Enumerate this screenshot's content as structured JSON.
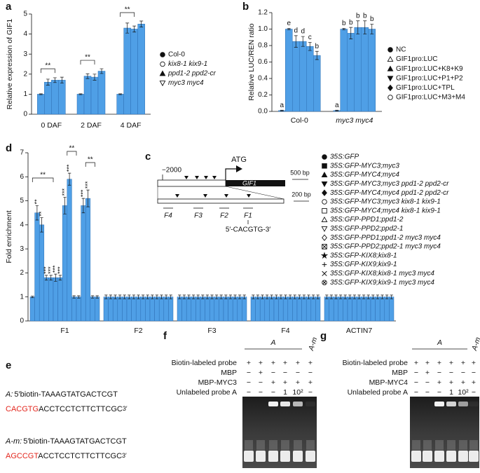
{
  "chart_data": [
    {
      "type": "bar",
      "panel_label": "a",
      "ylabel": "Relative expression of GIF1",
      "categories": [
        "0 DAF",
        "2 DAF",
        "4 DAF"
      ],
      "series": [
        {
          "name": "Col-0",
          "color": "#4f9fe6",
          "marker": "circle",
          "values": [
            1,
            1,
            1
          ],
          "errors": [
            0.02,
            0.02,
            0.02
          ]
        },
        {
          "name": "kix8-1 kix9-1",
          "color": "#4f9fe6",
          "marker": "circle-open",
          "values": [
            1.6,
            1.9,
            4.3
          ],
          "errors": [
            0.15,
            0.12,
            0.25
          ]
        },
        {
          "name": "ppd1-2 ppd2-cr",
          "color": "#4f9fe6",
          "marker": "triangle",
          "values": [
            1.7,
            1.85,
            4.25
          ],
          "errors": [
            0.12,
            0.15,
            0.15
          ]
        },
        {
          "name": "myc3 myc4",
          "color": "#4f9fe6",
          "marker": "triangle-down-open",
          "values": [
            1.7,
            2.15,
            4.5
          ],
          "errors": [
            0.15,
            0.12,
            0.15
          ]
        }
      ],
      "ylim": [
        0,
        5
      ],
      "yticks": [
        0,
        1,
        2,
        3,
        4,
        5
      ],
      "annotations": [
        "**",
        "**",
        "**"
      ],
      "legend": "right"
    },
    {
      "type": "bar",
      "panel_label": "b",
      "ylabel": "Relative LUC/REN ratio",
      "categories": [
        "Col-0",
        "myc3 myc4"
      ],
      "series": [
        {
          "name": "NC",
          "color": "#4f9fe6",
          "marker": "circle",
          "values": [
            0.01,
            0.01
          ],
          "errors": [
            0.005,
            0.005
          ],
          "letters": [
            "a",
            "a"
          ]
        },
        {
          "name": "GIF1pro:LUC",
          "color": "#4f9fe6",
          "marker": "triangle-open",
          "values": [
            1.0,
            1.0
          ],
          "errors": [
            0.01,
            0.01
          ],
          "letters": [
            "e",
            "b"
          ]
        },
        {
          "name": "GIF1pro:LUC+K8+K9",
          "color": "#4f9fe6",
          "marker": "triangle",
          "values": [
            0.85,
            0.95
          ],
          "errors": [
            0.07,
            0.07
          ],
          "letters": [
            "d",
            "b"
          ]
        },
        {
          "name": "GIF1pro:LUC+P1+P2",
          "color": "#4f9fe6",
          "marker": "triangle-down",
          "values": [
            0.85,
            1.02
          ],
          "errors": [
            0.06,
            0.08
          ],
          "letters": [
            "d",
            "b"
          ]
        },
        {
          "name": "GIF1pro:LUC+TPL",
          "color": "#4f9fe6",
          "marker": "diamond",
          "values": [
            0.79,
            1.02
          ],
          "errors": [
            0.05,
            0.08
          ],
          "letters": [
            "c",
            "b"
          ]
        },
        {
          "name": "GIF1pro:LUC+M3+M4",
          "color": "#4f9fe6",
          "marker": "circle-open",
          "values": [
            0.68,
            1.0
          ],
          "errors": [
            0.05,
            0.06
          ],
          "letters": [
            "b",
            "b"
          ]
        }
      ],
      "ylim": [
        0,
        1.2
      ],
      "yticks": [
        {
          "value": 0,
          "label": "0.0"
        },
        0.2,
        0.4,
        0.6,
        0.8,
        {
          "value": 1,
          "label": "1.0"
        },
        1.2
      ],
      "legend": "right"
    },
    {
      "type": "bar",
      "panel_label": "d",
      "ylabel": "Fold enrichment",
      "categories": [
        "F1",
        "F2",
        "F3",
        "F4",
        "ACTIN7"
      ],
      "series": [
        {
          "name": "35S:GFP",
          "color": "#4f9fe6",
          "marker": "circle",
          "values": [
            1,
            1,
            1,
            1,
            1
          ],
          "errors": [
            0.03,
            0.08,
            0.08,
            0.08,
            0.08
          ]
        },
        {
          "name": "35S:GFP-MYC3;myc3",
          "color": "#4f9fe6",
          "marker": "square",
          "values": [
            4.5,
            1,
            1,
            1,
            1
          ],
          "errors": [
            0.3,
            0.08,
            0.08,
            0.08,
            0.08
          ]
        },
        {
          "name": "35S:GFP-MYC4;myc4",
          "color": "#4f9fe6",
          "marker": "triangle",
          "values": [
            4.0,
            1,
            1,
            1,
            1
          ],
          "errors": [
            0.3,
            0.08,
            0.08,
            0.08,
            0.08
          ]
        },
        {
          "name": "35S:GFP-MYC3;myc3 ppd1-2 ppd2-cr",
          "color": "#4f9fe6",
          "marker": "triangle-down",
          "values": [
            1.8,
            1,
            1,
            1,
            1
          ],
          "errors": [
            0.1,
            0.08,
            0.08,
            0.08,
            0.08
          ]
        },
        {
          "name": "35S:GFP-MYC4;myc4 ppd1-2 ppd2-cr",
          "color": "#4f9fe6",
          "marker": "diamond",
          "values": [
            1.8,
            1,
            1,
            1,
            1
          ],
          "errors": [
            0.1,
            0.08,
            0.08,
            0.08,
            0.08
          ]
        },
        {
          "name": "35S:GFP-MYC3;myc3 kix8-1 kix9-1",
          "color": "#4f9fe6",
          "marker": "circle-open",
          "values": [
            1.8,
            1,
            1,
            1,
            1
          ],
          "errors": [
            0.15,
            0.08,
            0.08,
            0.08,
            0.08
          ]
        },
        {
          "name": "35S:GFP-MYC4;myc4 kix8-1 kix9-1",
          "color": "#4f9fe6",
          "marker": "square-open",
          "values": [
            1.8,
            1,
            1,
            1,
            1
          ],
          "errors": [
            0.1,
            0.08,
            0.08,
            0.08,
            0.08
          ]
        },
        {
          "name": "35S:GFP-PPD1;ppd1-2",
          "color": "#4f9fe6",
          "marker": "triangle-open",
          "values": [
            4.8,
            1,
            1,
            1,
            1
          ],
          "errors": [
            0.35,
            0.08,
            0.08,
            0.08,
            0.08
          ]
        },
        {
          "name": "35S:GFP-PPD2;ppd2-1",
          "color": "#4f9fe6",
          "marker": "triangle-down-open",
          "values": [
            5.9,
            1,
            1,
            1,
            1
          ],
          "errors": [
            0.25,
            0.08,
            0.08,
            0.08,
            0.08
          ]
        },
        {
          "name": "35S:GFP-PPD1;ppd1-2 myc3 myc4",
          "color": "#4f9fe6",
          "marker": "diamond-open",
          "values": [
            1.0,
            1,
            1,
            1,
            1
          ],
          "errors": [
            0.05,
            0.08,
            0.08,
            0.08,
            0.08
          ]
        },
        {
          "name": "35S:GFP-PPD2;ppd2-1 myc3 myc4",
          "color": "#4f9fe6",
          "marker": "square-x",
          "values": [
            1.0,
            1,
            1,
            1,
            1
          ],
          "errors": [
            0.05,
            0.08,
            0.08,
            0.08,
            0.08
          ]
        },
        {
          "name": "35S:GFP-KIX8;kix8-1",
          "color": "#4f9fe6",
          "marker": "star",
          "values": [
            4.8,
            1,
            1,
            1,
            1
          ],
          "errors": [
            0.3,
            0.08,
            0.08,
            0.08,
            0.08
          ]
        },
        {
          "name": "35S:GFP-KIX9;kix9-1",
          "color": "#4f9fe6",
          "marker": "plus",
          "values": [
            5.1,
            1,
            1,
            1,
            1
          ],
          "errors": [
            0.35,
            0.08,
            0.08,
            0.08,
            0.08
          ]
        },
        {
          "name": "35S:GFP-KIX8;kix8-1 myc3 myc4",
          "color": "#4f9fe6",
          "marker": "x",
          "values": [
            1.0,
            1,
            1,
            1,
            1
          ],
          "errors": [
            0.05,
            0.08,
            0.08,
            0.08,
            0.08
          ]
        },
        {
          "name": "35S:GFP-KIX9;kix9-1 myc3 myc4",
          "color": "#4f9fe6",
          "marker": "circle-x",
          "values": [
            1.0,
            1,
            1,
            1,
            1
          ],
          "errors": [
            0.05,
            0.08,
            0.08,
            0.08,
            0.08
          ]
        }
      ],
      "stars": [
        null,
        "**",
        "**",
        "***",
        "***",
        "***",
        "***",
        "***",
        "***",
        null,
        null,
        "***",
        "***",
        null,
        null
      ],
      "ylim": [
        0,
        7
      ],
      "yticks": [
        0,
        1,
        2,
        3,
        4,
        5,
        6,
        7
      ],
      "annotations": [
        "**",
        "**",
        "**"
      ],
      "legend": "upper right"
    }
  ],
  "diagram_c": {
    "panel_label": "c",
    "upstream": "−2000",
    "start": "ATG",
    "gene": "GIF1",
    "scale_top": "500 bp",
    "scale_bottom": "200 bp",
    "fragments": [
      "F4",
      "F3",
      "F2",
      "F1"
    ],
    "motif": "5′-CACGTG-3′"
  },
  "panel_e": {
    "panel_label": "e",
    "motif_color": "#e3261d",
    "probes": [
      {
        "name": "A:",
        "prefix": "5′biotin-TAAAGTATGACTCGT",
        "motif": "CACGTG",
        "suffix": "ACCTCCTCTTCTTCGC",
        "end": "3′"
      },
      {
        "name": "A-m:",
        "prefix": "5′biotin-TAAAGTATGACTCGT",
        "motif": "AGCCGT",
        "suffix": "ACCTCCTCTTCTTCGC",
        "end": "3′"
      }
    ]
  },
  "panel_f": {
    "panel_label": "f",
    "header": "A",
    "mutant": "A-m",
    "rows": [
      {
        "label": "Biotin-labeled probe",
        "cells": [
          "+",
          "+",
          "+",
          "+",
          "+",
          "+"
        ]
      },
      {
        "label": "MBP",
        "cells": [
          "−",
          "+",
          "−",
          "−",
          "−",
          "−"
        ]
      },
      {
        "label": "MBP-MYC3",
        "cells": [
          "−",
          "−",
          "+",
          "+",
          "+",
          "+"
        ]
      },
      {
        "label": "Unlabeled probe A",
        "cells": [
          "−",
          "−",
          "−",
          "1",
          "10²",
          "−"
        ]
      }
    ]
  },
  "panel_g": {
    "panel_label": "g",
    "header": "A",
    "mutant": "A-m",
    "rows": [
      {
        "label": "Biotin-labeled probe",
        "cells": [
          "+",
          "+",
          "+",
          "+",
          "+",
          "+"
        ]
      },
      {
        "label": "MBP",
        "cells": [
          "−",
          "+",
          "−",
          "−",
          "−",
          "−"
        ]
      },
      {
        "label": "MBP-MYC4",
        "cells": [
          "−",
          "−",
          "+",
          "+",
          "+",
          "+"
        ]
      },
      {
        "label": "Unlabeled probe A",
        "cells": [
          "−",
          "−",
          "−",
          "1",
          "10²",
          "−"
        ]
      }
    ]
  }
}
